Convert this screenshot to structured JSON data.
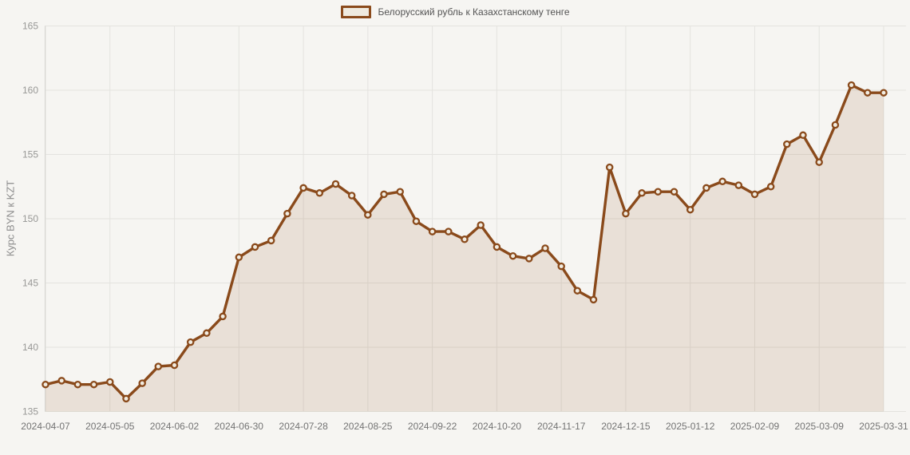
{
  "page": {
    "background_color": "#F6F5F2"
  },
  "legend": {
    "label": "Белорусский рубль к Казахстанскому тенге",
    "swatch_fill": "#EFEADF",
    "swatch_border": "#8A4A1B"
  },
  "chart_data": {
    "type": "area",
    "title": "",
    "xlabel": "",
    "ylabel": "Курс BYN к KZT",
    "series_name": "Белорусский рубль к Казахстанскому тенге",
    "legend_position": "top-center",
    "grid": true,
    "ylim": [
      135,
      165
    ],
    "ytick_step": 5,
    "ytick_labels": [
      "135",
      "140",
      "145",
      "150",
      "155",
      "160",
      "165"
    ],
    "x": [
      "2024-04-07",
      "2024-04-14",
      "2024-04-21",
      "2024-04-28",
      "2024-05-05",
      "2024-05-12",
      "2024-05-19",
      "2024-05-26",
      "2024-06-02",
      "2024-06-09",
      "2024-06-16",
      "2024-06-23",
      "2024-06-30",
      "2024-07-07",
      "2024-07-14",
      "2024-07-21",
      "2024-07-28",
      "2024-08-04",
      "2024-08-11",
      "2024-08-18",
      "2024-08-25",
      "2024-09-01",
      "2024-09-08",
      "2024-09-15",
      "2024-09-22",
      "2024-09-29",
      "2024-10-06",
      "2024-10-13",
      "2024-10-20",
      "2024-10-27",
      "2024-11-03",
      "2024-11-10",
      "2024-11-17",
      "2024-11-24",
      "2024-12-01",
      "2024-12-08",
      "2024-12-15",
      "2024-12-22",
      "2024-12-29",
      "2025-01-05",
      "2025-01-12",
      "2025-01-19",
      "2025-01-26",
      "2025-02-02",
      "2025-02-09",
      "2025-02-16",
      "2025-02-23",
      "2025-03-02",
      "2025-03-09",
      "2025-03-16",
      "2025-03-23",
      "2025-03-30",
      "2025-03-31"
    ],
    "values": [
      137.1,
      137.4,
      137.1,
      137.1,
      137.3,
      136.0,
      137.2,
      138.5,
      138.6,
      140.4,
      141.1,
      142.4,
      147.0,
      147.8,
      148.3,
      150.4,
      152.4,
      152.0,
      152.7,
      151.8,
      150.3,
      151.9,
      152.1,
      149.8,
      149.0,
      149.0,
      148.4,
      149.5,
      147.8,
      147.1,
      146.9,
      147.7,
      146.3,
      144.4,
      143.7,
      154.0,
      150.4,
      152.0,
      152.1,
      152.1,
      150.7,
      152.4,
      152.9,
      152.6,
      151.9,
      152.5,
      155.8,
      156.5,
      154.4,
      157.3,
      160.4,
      159.8,
      159.8
    ],
    "xtick_indices": [
      0,
      4,
      8,
      12,
      16,
      20,
      24,
      28,
      32,
      36,
      40,
      44,
      48,
      52
    ],
    "xtick_labels": [
      "2024-04-07",
      "2024-05-05",
      "2024-06-02",
      "2024-06-30",
      "2024-07-28",
      "2024-08-25",
      "2024-09-22",
      "2024-10-20",
      "2024-11-17",
      "2024-12-15",
      "2025-01-12",
      "2025-02-09",
      "2025-03-09",
      "2025-03-31"
    ],
    "colors": {
      "line": "#8A4A1B",
      "area_fill": "rgba(139,74,26,0.12)",
      "marker_fill": "#F1ECE1",
      "marker_stroke": "#8A4A1B",
      "gridline": "#E4E3DF",
      "axis_line": "#D6D5D1",
      "y_tick_text": "#989896",
      "x_tick_text": "#737373"
    }
  }
}
